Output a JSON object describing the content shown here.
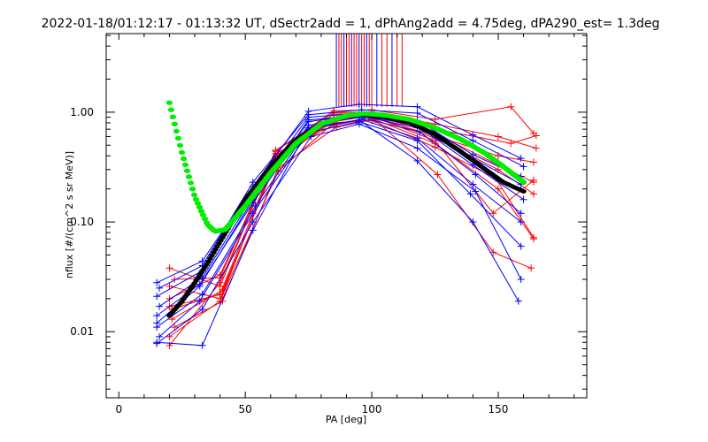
{
  "chart_data": {
    "type": "line",
    "title": "2022-01-18/01:12:17 - 01:13:32 UT, dSectr2add = 1, dPhAng2add = 4.75deg, dPA290_est=    1.3deg",
    "xlabel": "PA [deg]",
    "ylabel": "nflux [#/(cm^2 s sr MeV)]",
    "xlim": [
      -5,
      185
    ],
    "ylim": [
      0.0025,
      5.2
    ],
    "yscale": "log",
    "xticks": [
      0,
      50,
      100,
      150
    ],
    "xtick_labels": [
      "0",
      "50",
      "100",
      "150"
    ],
    "yticks": [
      0.01,
      0.1,
      1.0
    ],
    "ytick_labels": [
      "0.01",
      "0.10",
      "1.00"
    ],
    "grid": false,
    "colors": {
      "red": "#ff0000",
      "blue": "#0000ff",
      "green": "#00ee00",
      "black": "#000000"
    },
    "vertical_lines": {
      "x": [
        86,
        87,
        88,
        89,
        90,
        91,
        92,
        93,
        94,
        95,
        96,
        97,
        98,
        99,
        100,
        102,
        104,
        106,
        108,
        110,
        112
      ],
      "from_y": 1.12
    },
    "series": [
      {
        "color": "#ff0000",
        "marker": "+",
        "x": [
          20,
          40,
          62,
          85,
          100,
          125,
          155,
          164
        ],
        "y": [
          0.038,
          0.026,
          0.44,
          1.03,
          1.05,
          0.86,
          1.12,
          0.64
        ]
      },
      {
        "color": "#ff0000",
        "marker": "+",
        "x": [
          20,
          40,
          62,
          85,
          100,
          125,
          150,
          164
        ],
        "y": [
          0.026,
          0.02,
          0.36,
          0.86,
          0.95,
          0.64,
          0.33,
          0.23
        ]
      },
      {
        "color": "#ff0000",
        "marker": "+",
        "x": [
          21,
          40,
          62,
          85,
          100,
          125,
          150,
          164
        ],
        "y": [
          0.016,
          0.022,
          0.38,
          0.82,
          0.93,
          0.58,
          0.3,
          0.18
        ]
      },
      {
        "color": "#ff0000",
        "marker": "+",
        "x": [
          20,
          40,
          62,
          85,
          100,
          125,
          150,
          164
        ],
        "y": [
          0.0075,
          0.028,
          0.42,
          0.76,
          0.88,
          0.52,
          0.2,
          0.07
        ]
      },
      {
        "color": "#ff0000",
        "marker": "+",
        "x": [
          22,
          41,
          63,
          86,
          101,
          126,
          148,
          163
        ],
        "y": [
          0.011,
          0.019,
          0.31,
          0.73,
          0.86,
          0.27,
          0.053,
          0.038
        ]
      },
      {
        "color": "#ff0000",
        "marker": "+",
        "x": [
          20,
          40,
          62,
          85,
          100,
          125,
          155,
          165
        ],
        "y": [
          0.02,
          0.033,
          0.4,
          0.96,
          0.98,
          0.7,
          0.52,
          0.61
        ]
      },
      {
        "color": "#ff0000",
        "marker": "+",
        "x": [
          21,
          41,
          62,
          85,
          100,
          126,
          150,
          164
        ],
        "y": [
          0.013,
          0.024,
          0.34,
          0.88,
          0.9,
          0.6,
          0.4,
          0.35
        ]
      },
      {
        "color": "#ff0000",
        "marker": "+",
        "x": [
          20,
          40,
          63,
          85,
          100,
          125,
          149,
          164
        ],
        "y": [
          0.009,
          0.019,
          0.29,
          0.8,
          0.84,
          0.48,
          0.25,
          0.072
        ]
      },
      {
        "color": "#ff0000",
        "marker": "+",
        "x": [
          22,
          40,
          62,
          85,
          100,
          125,
          150,
          165
        ],
        "y": [
          0.03,
          0.031,
          0.45,
          0.99,
          1.0,
          0.78,
          0.6,
          0.47
        ]
      },
      {
        "color": "#ff0000",
        "marker": "+",
        "x": [
          20,
          41,
          62,
          86,
          100,
          125,
          148,
          164
        ],
        "y": [
          0.017,
          0.022,
          0.37,
          0.9,
          0.92,
          0.55,
          0.12,
          0.24
        ]
      },
      {
        "color": "#0000ff",
        "marker": "+",
        "x": [
          15,
          33,
          53,
          75,
          95,
          118,
          140,
          159
        ],
        "y": [
          0.028,
          0.044,
          0.21,
          1.02,
          1.18,
          1.12,
          0.62,
          0.38
        ]
      },
      {
        "color": "#0000ff",
        "marker": "+",
        "x": [
          15,
          33,
          53,
          75,
          96,
          118,
          140,
          159
        ],
        "y": [
          0.021,
          0.036,
          0.19,
          0.9,
          0.98,
          0.84,
          0.41,
          0.26
        ]
      },
      {
        "color": "#0000ff",
        "marker": "+",
        "x": [
          16,
          33,
          53,
          75,
          95,
          118,
          140,
          160
        ],
        "y": [
          0.017,
          0.031,
          0.17,
          0.82,
          0.95,
          0.75,
          0.33,
          0.16
        ]
      },
      {
        "color": "#0000ff",
        "marker": "+",
        "x": [
          15,
          32,
          53,
          75,
          95,
          119,
          141,
          159
        ],
        "y": [
          0.014,
          0.027,
          0.15,
          0.76,
          0.9,
          0.66,
          0.27,
          0.12
        ]
      },
      {
        "color": "#0000ff",
        "marker": "+",
        "x": [
          15,
          33,
          54,
          75,
          96,
          118,
          140,
          159
        ],
        "y": [
          0.011,
          0.022,
          0.14,
          0.7,
          0.86,
          0.58,
          0.22,
          0.1
        ]
      },
      {
        "color": "#0000ff",
        "marker": "+",
        "x": [
          16,
          32,
          53,
          75,
          95,
          118,
          139,
          159
        ],
        "y": [
          0.009,
          0.019,
          0.12,
          0.65,
          0.82,
          0.55,
          0.18,
          0.06
        ]
      },
      {
        "color": "#0000ff",
        "marker": "+",
        "x": [
          15,
          33,
          53,
          75,
          95,
          118,
          140,
          158
        ],
        "y": [
          0.008,
          0.0075,
          0.084,
          0.72,
          0.85,
          0.36,
          0.1,
          0.019
        ]
      },
      {
        "color": "#0000ff",
        "marker": "+",
        "x": [
          15,
          33,
          53,
          76,
          95,
          118,
          141,
          159
        ],
        "y": [
          0.0078,
          0.016,
          0.1,
          0.6,
          0.78,
          0.47,
          0.19,
          0.03
        ]
      },
      {
        "color": "#0000ff",
        "marker": "+",
        "x": [
          16,
          33,
          53,
          75,
          96,
          118,
          140,
          160
        ],
        "y": [
          0.025,
          0.04,
          0.23,
          0.95,
          1.05,
          0.98,
          0.55,
          0.32
        ]
      },
      {
        "color": "#0000ff",
        "marker": "+",
        "x": [
          15,
          32,
          53,
          75,
          95,
          118,
          140,
          159
        ],
        "y": [
          0.012,
          0.026,
          0.16,
          0.85,
          0.93,
          0.72,
          0.38,
          0.22
        ]
      }
    ],
    "green_curve": {
      "x_range": [
        20,
        160
      ],
      "description_points": [
        [
          20,
          1.22
        ],
        [
          25,
          0.42
        ],
        [
          30,
          0.17
        ],
        [
          35,
          0.095
        ],
        [
          38,
          0.082
        ],
        [
          42,
          0.085
        ],
        [
          50,
          0.14
        ],
        [
          60,
          0.28
        ],
        [
          70,
          0.52
        ],
        [
          80,
          0.78
        ],
        [
          90,
          0.93
        ],
        [
          97,
          0.97
        ],
        [
          105,
          0.94
        ],
        [
          115,
          0.86
        ],
        [
          125,
          0.72
        ],
        [
          135,
          0.57
        ],
        [
          145,
          0.42
        ],
        [
          152,
          0.32
        ],
        [
          160,
          0.23
        ]
      ]
    },
    "black_curve": {
      "x_range": [
        20,
        160
      ],
      "description_points": [
        [
          20,
          0.014
        ],
        [
          25,
          0.019
        ],
        [
          30,
          0.028
        ],
        [
          35,
          0.042
        ],
        [
          40,
          0.066
        ],
        [
          50,
          0.16
        ],
        [
          60,
          0.32
        ],
        [
          70,
          0.56
        ],
        [
          80,
          0.78
        ],
        [
          90,
          0.92
        ],
        [
          97,
          0.95
        ],
        [
          105,
          0.91
        ],
        [
          115,
          0.8
        ],
        [
          125,
          0.63
        ],
        [
          135,
          0.44
        ],
        [
          145,
          0.3
        ],
        [
          152,
          0.23
        ],
        [
          160,
          0.19
        ]
      ]
    }
  }
}
